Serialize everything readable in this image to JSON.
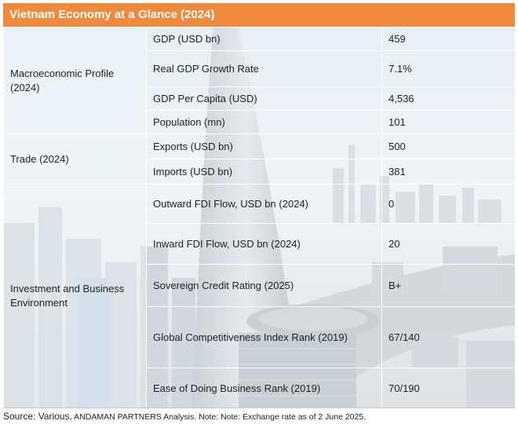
{
  "title": "Vietnam Economy at a Glance (2024)",
  "groups": [
    {
      "label": "Macroeconomic Profile (2024)",
      "rows": [
        {
          "metric": "GDP (USD bn)",
          "value": "459"
        },
        {
          "metric": "Real GDP Growth Rate",
          "value": "7.1%"
        },
        {
          "metric": "GDP Per Capita (USD)",
          "value": "4,536"
        },
        {
          "metric": "Population (mn)",
          "value": "101"
        }
      ]
    },
    {
      "label": "Trade (2024)",
      "rows": [
        {
          "metric": "Exports (USD bn)",
          "value": "500"
        },
        {
          "metric": "Imports (USD bn)",
          "value": "381"
        }
      ]
    },
    {
      "label": "Investment and Business Environment",
      "rows": [
        {
          "metric": "Outward FDI Flow, USD bn (2024)",
          "value": "0"
        },
        {
          "metric": "Inward FDI Flow, USD bn (2024)",
          "value": "20"
        },
        {
          "metric": "Sovereign Credit Rating (2025)",
          "value": "B+"
        },
        {
          "metric": "Global Competitiveness Index Rank (2019)",
          "value": "67/140"
        },
        {
          "metric": "Ease of Doing Business Rank (2019)",
          "value": "70/190"
        }
      ]
    }
  ],
  "source": {
    "lead": "Source: Various,",
    "rest": " ANDAMAN PARTNERS Analysis. Note: Note: Exchange rate as of 2 June 2025."
  },
  "colors": {
    "title_bar": "#ef8a3c",
    "title_text": "#ffffff"
  }
}
